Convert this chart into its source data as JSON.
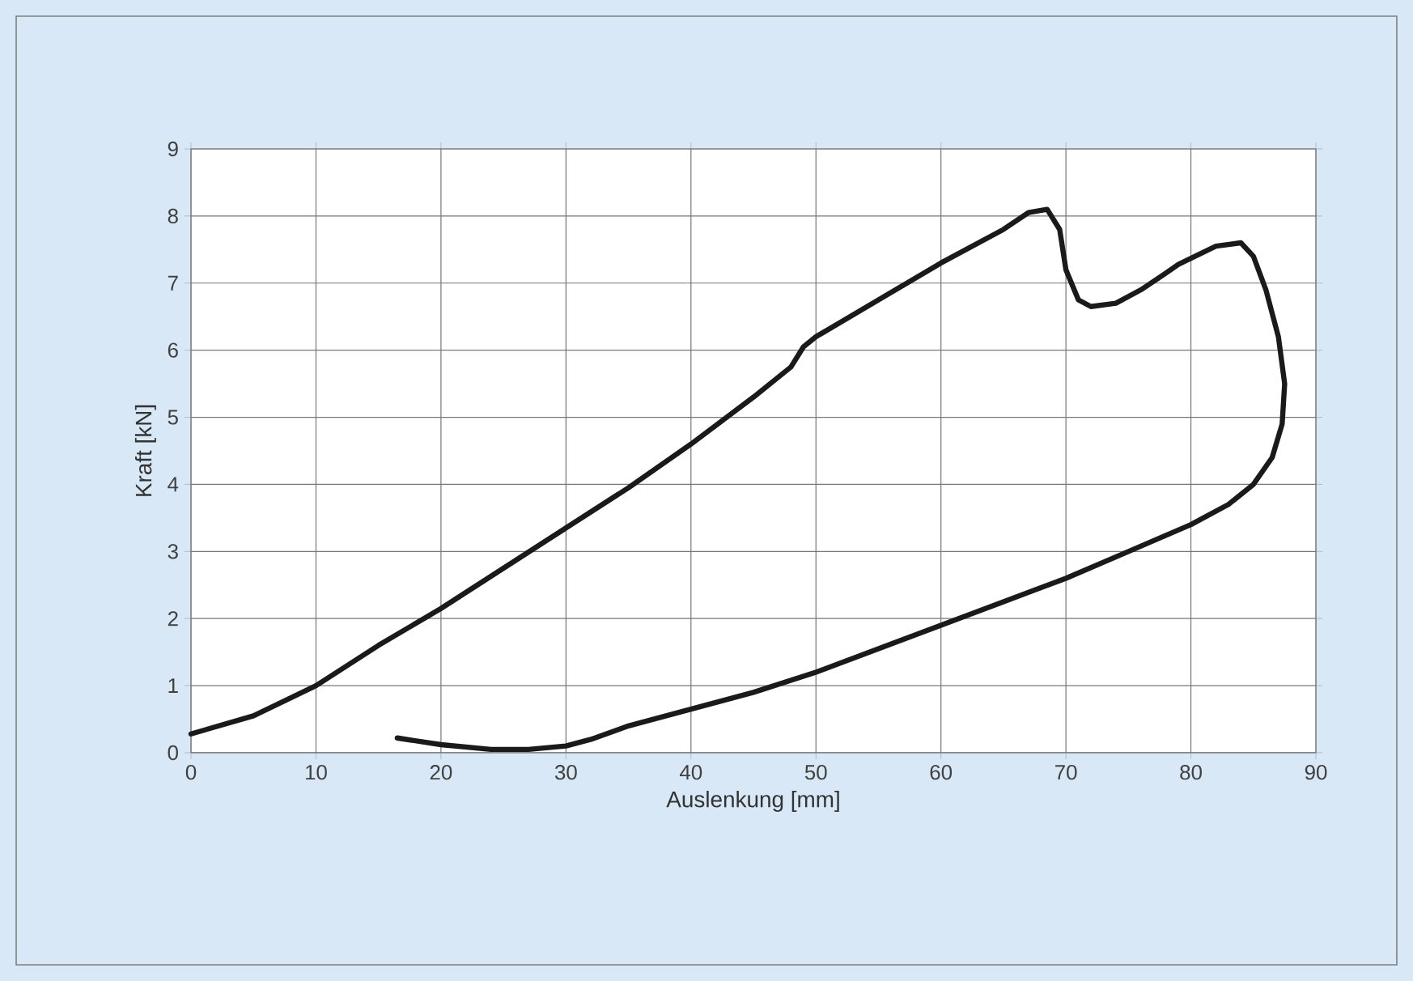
{
  "chart_data": {
    "type": "line",
    "xlabel": "Auslenkung [mm]",
    "ylabel": "Kraft [kN]",
    "xlim": [
      0,
      90
    ],
    "ylim": [
      0,
      9
    ],
    "xticks": [
      0,
      10,
      20,
      30,
      40,
      50,
      60,
      70,
      80,
      90
    ],
    "yticks": [
      0,
      1,
      2,
      3,
      4,
      5,
      6,
      7,
      8,
      9
    ],
    "grid": true,
    "marker": "none",
    "line_style": "solid",
    "series": [
      {
        "color": "#1a1a1a",
        "x": [
          0,
          5,
          10,
          15,
          20,
          25,
          30,
          35,
          40,
          45,
          48,
          49,
          50,
          55,
          60,
          65,
          67,
          68.5,
          69.5,
          70,
          71,
          72,
          74,
          76,
          78,
          79,
          82,
          84,
          85,
          86,
          87,
          87.5,
          87.3,
          86.5,
          85,
          83,
          80,
          75,
          70,
          65,
          60,
          55,
          50,
          45,
          40,
          35,
          32,
          30,
          27,
          24,
          20,
          16.5
        ],
        "values": [
          0.28,
          0.55,
          1.0,
          1.6,
          2.15,
          2.75,
          3.35,
          3.95,
          4.6,
          5.3,
          5.75,
          6.05,
          6.2,
          6.75,
          7.3,
          7.8,
          8.05,
          8.1,
          7.8,
          7.2,
          6.75,
          6.65,
          6.7,
          6.9,
          7.15,
          7.28,
          7.55,
          7.6,
          7.4,
          6.9,
          6.2,
          5.5,
          4.9,
          4.4,
          4.0,
          3.7,
          3.4,
          3.0,
          2.6,
          2.25,
          1.9,
          1.55,
          1.2,
          0.9,
          0.65,
          0.4,
          0.2,
          0.1,
          0.05,
          0.05,
          0.12,
          0.22
        ]
      }
    ]
  }
}
